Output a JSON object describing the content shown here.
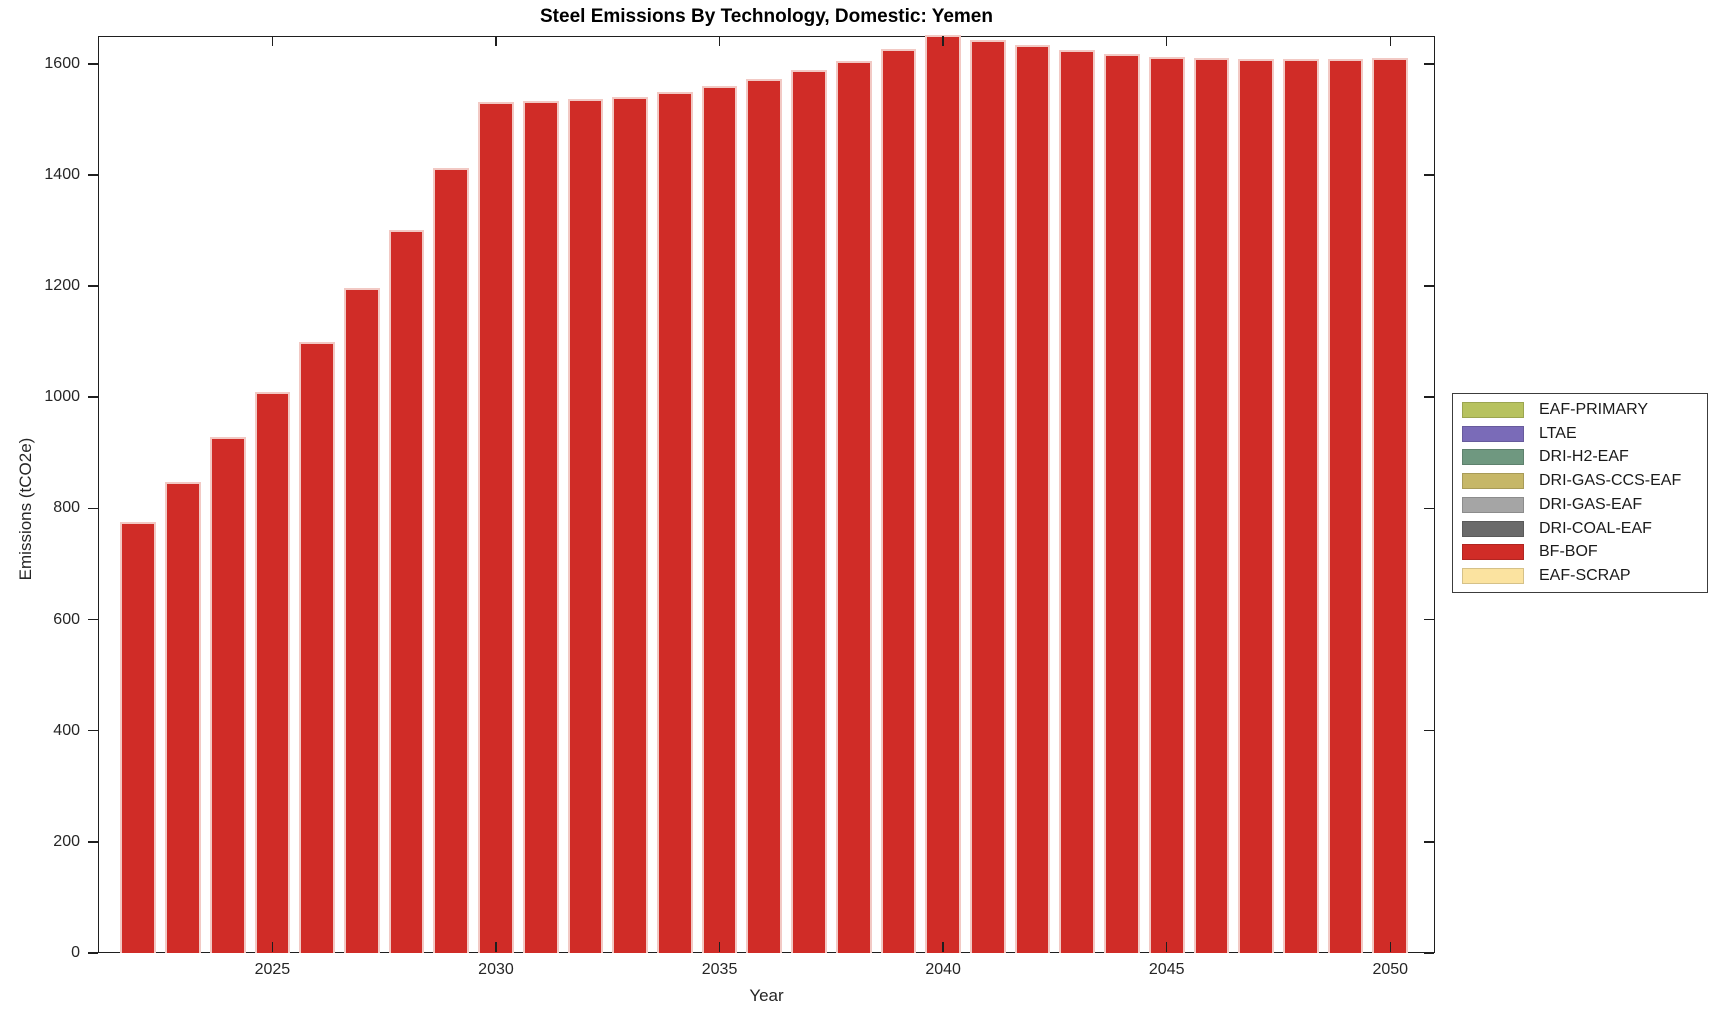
{
  "title": "Steel Emissions By Technology, Domestic: Yemen",
  "axes": {
    "x_label": "Year",
    "y_label": "Emissions (tCO2e)",
    "x_ticks": [
      2025,
      2030,
      2035,
      2040,
      2045,
      2050
    ],
    "y_ticks": [
      0,
      200,
      400,
      600,
      800,
      1000,
      1200,
      1400,
      1600
    ]
  },
  "legend": {
    "entries": [
      {
        "label": "EAF-PRIMARY",
        "color": "#b7c25f"
      },
      {
        "label": "LTAE",
        "color": "#7a6bb8"
      },
      {
        "label": "DRI-H2-EAF",
        "color": "#6f9880"
      },
      {
        "label": "DRI-GAS-CCS-EAF",
        "color": "#c6b768"
      },
      {
        "label": "DRI-GAS-EAF",
        "color": "#a5a5a5"
      },
      {
        "label": "DRI-COAL-EAF",
        "color": "#6a6a6a"
      },
      {
        "label": "BF-BOF",
        "color": "#d02c27"
      },
      {
        "label": "EAF-SCRAP",
        "color": "#fbe3a0"
      }
    ]
  },
  "chart_data": {
    "type": "bar",
    "title": "Steel Emissions By Technology, Domestic: Yemen",
    "xlabel": "Year",
    "ylabel": "Emissions (tCO2e)",
    "x": [
      2022,
      2023,
      2024,
      2025,
      2026,
      2027,
      2028,
      2029,
      2030,
      2031,
      2032,
      2033,
      2034,
      2035,
      2036,
      2037,
      2038,
      2039,
      2040,
      2041,
      2042,
      2043,
      2044,
      2045,
      2046,
      2047,
      2048,
      2049,
      2050
    ],
    "series": [
      {
        "name": "BF-BOF",
        "color": "#d02c27",
        "values": [
          775,
          848,
          928,
          1010,
          1100,
          1197,
          1301,
          1413,
          1531,
          1533,
          1536,
          1541,
          1549,
          1560,
          1573,
          1588,
          1605,
          1627,
          1652,
          1643,
          1633,
          1624,
          1618,
          1613,
          1611,
          1609,
          1608,
          1609,
          1610
        ]
      }
    ],
    "bar_edge_color": "#f2c9c4",
    "bar_relative_width": 0.8,
    "xlim": [
      2021.1,
      2051.0
    ],
    "ylim": [
      0,
      1650
    ],
    "grid": false,
    "legend_position": "outside-right"
  }
}
